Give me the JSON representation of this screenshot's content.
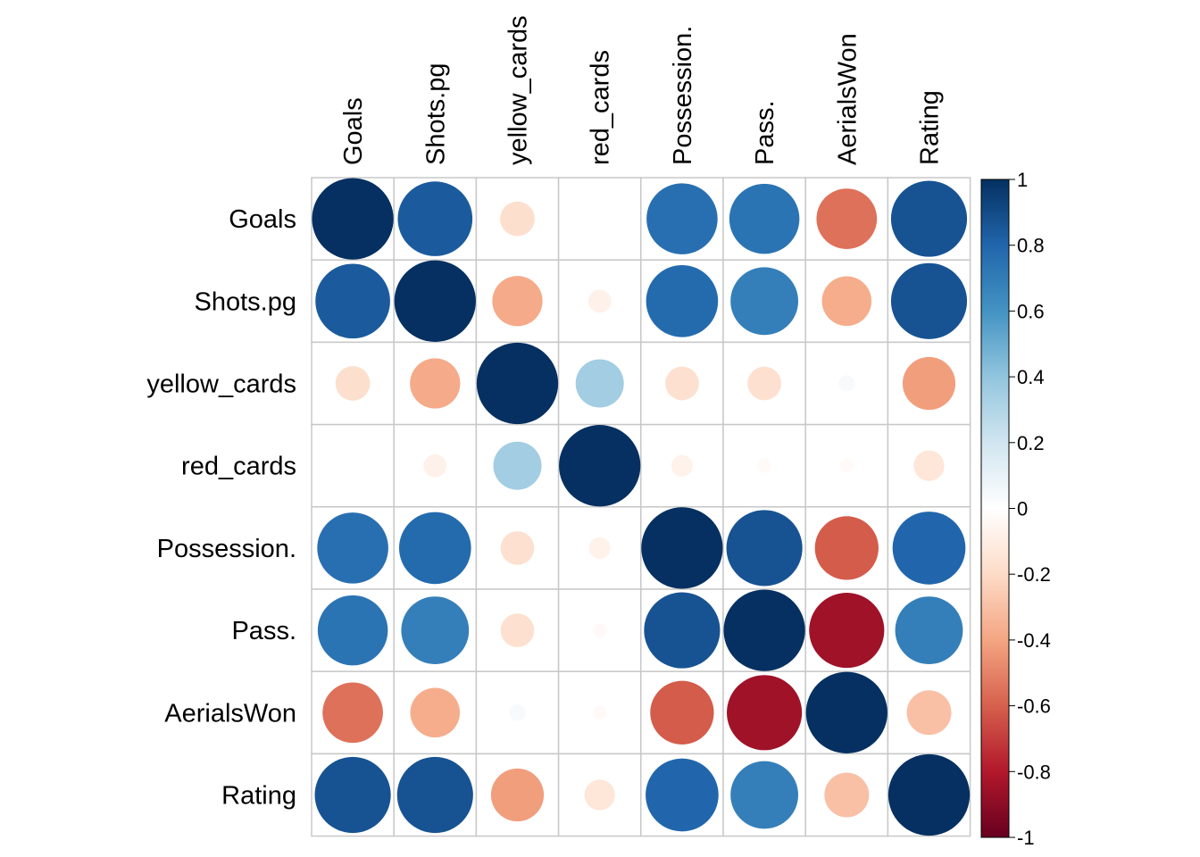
{
  "chart_data": {
    "type": "heatmap",
    "style": "correlation-circles",
    "variables": [
      "Goals",
      "Shots.pg",
      "yellow_cards",
      "red_cards",
      "Possession.",
      "Pass.",
      "AerialsWon",
      "Rating"
    ],
    "matrix": [
      [
        1.0,
        0.84,
        -0.18,
        0.0,
        0.76,
        0.74,
        -0.55,
        0.87
      ],
      [
        0.84,
        1.0,
        -0.38,
        -0.08,
        0.78,
        0.69,
        -0.37,
        0.87
      ],
      [
        -0.18,
        -0.38,
        1.0,
        0.35,
        -0.17,
        -0.17,
        0.04,
        -0.42
      ],
      [
        0.0,
        -0.08,
        0.35,
        1.0,
        -0.07,
        -0.03,
        -0.03,
        -0.14
      ],
      [
        0.76,
        0.78,
        -0.17,
        -0.07,
        1.0,
        0.87,
        -0.61,
        0.8
      ],
      [
        0.74,
        0.69,
        -0.17,
        -0.03,
        0.87,
        1.0,
        -0.85,
        0.69
      ],
      [
        -0.55,
        -0.37,
        0.04,
        -0.03,
        -0.61,
        -0.85,
        1.0,
        -0.3
      ],
      [
        0.87,
        0.87,
        -0.42,
        -0.14,
        0.8,
        0.69,
        -0.3,
        1.0
      ]
    ],
    "colorbar": {
      "range": [
        -1,
        1
      ],
      "ticks": [
        "1",
        "0.8",
        "0.6",
        "0.4",
        "0.2",
        "0",
        "-0.2",
        "-0.4",
        "-0.6",
        "-0.8",
        "-1"
      ],
      "placement": "right"
    },
    "grid": true
  }
}
